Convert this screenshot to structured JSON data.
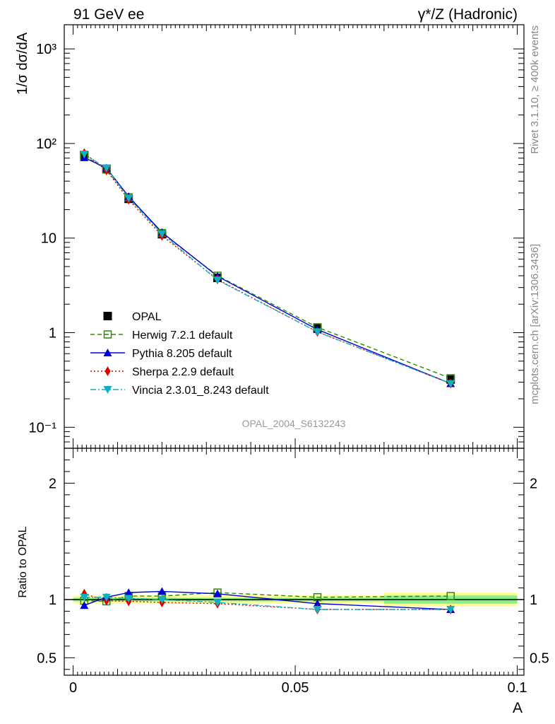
{
  "header": {
    "left_title": "91 GeV ee",
    "right_title": "γ*/Z (Hadronic)"
  },
  "side_labels": {
    "rivet": "Rivet 3.1.10, ≥ 400k events",
    "mcplots": "mcplots.cern.ch [arXiv:1306.3436]"
  },
  "analysis_id": "OPAL_2004_S6132243",
  "colors": {
    "opal": "#000000",
    "herwig": "#2e8b00",
    "pythia": "#0000d0",
    "sherpa": "#e00000",
    "vincia": "#10b0c0",
    "band_outer": "#ffff99",
    "band_inner": "#88ee88"
  },
  "chart_data": [
    {
      "type": "line",
      "panel": "main",
      "ylabel": "1/σ dσ/dA",
      "yscale": "log",
      "ylim": [
        0.06,
        1800
      ],
      "xlim": [
        -0.002,
        0.1015
      ],
      "y_tick_labels": [
        "10⁻¹",
        "1",
        "10",
        "10²",
        "10³"
      ],
      "x": [
        0.0025,
        0.0075,
        0.0125,
        0.02,
        0.0325,
        0.055,
        0.085
      ],
      "series": [
        {
          "name": "OPAL",
          "values": [
            75,
            54,
            26,
            11,
            3.8,
            1.12,
            0.32
          ]
        },
        {
          "name": "Herwig 7.2.1 default",
          "values": [
            74,
            53,
            27,
            11.3,
            4.0,
            1.14,
            0.33
          ]
        },
        {
          "name": "Pythia 8.205 default",
          "values": [
            71,
            55,
            27.5,
            11.5,
            3.95,
            1.08,
            0.29
          ]
        },
        {
          "name": "Sherpa 2.2.9 default",
          "values": [
            79,
            52,
            25.5,
            10.6,
            3.65,
            1.02,
            0.29
          ]
        },
        {
          "name": "Vincia 2.3.01_8.243 default",
          "values": [
            77,
            55,
            26.5,
            11.1,
            3.6,
            1.02,
            0.29
          ]
        }
      ]
    },
    {
      "type": "line",
      "panel": "ratio",
      "ylabel": "Ratio to OPAL",
      "xlabel": "A",
      "ylim": [
        0.35,
        2.3
      ],
      "xlim": [
        -0.002,
        0.1015
      ],
      "y_tick_labels": [
        "0.5",
        "1",
        "2"
      ],
      "x_tick_labels": [
        "0",
        "0.05",
        "0.1"
      ],
      "x": [
        0.0025,
        0.0075,
        0.0125,
        0.02,
        0.0325,
        0.055,
        0.085
      ],
      "bands": [
        {
          "x0": 0.0,
          "x1": 0.07,
          "lo": 0.965,
          "hi": 1.035,
          "inner_lo": 0.985,
          "inner_hi": 1.015
        },
        {
          "x0": 0.07,
          "x1": 0.1,
          "lo": 0.94,
          "hi": 1.06,
          "inner_lo": 0.965,
          "inner_hi": 1.035
        }
      ],
      "series": [
        {
          "name": "Herwig 7.2.1 default",
          "values": [
            0.99,
            0.985,
            1.03,
            1.03,
            1.06,
            1.02,
            1.03
          ]
        },
        {
          "name": "Pythia 8.205 default",
          "values": [
            0.95,
            1.02,
            1.06,
            1.07,
            1.05,
            0.965,
            0.915
          ]
        },
        {
          "name": "Sherpa 2.2.9 default",
          "values": [
            1.05,
            0.99,
            0.985,
            0.975,
            0.965,
            0.915,
            0.915
          ]
        },
        {
          "name": "Vincia 2.3.01_8.243 default",
          "values": [
            1.02,
            1.02,
            1.01,
            1.0,
            0.975,
            0.915,
            0.915
          ]
        }
      ]
    }
  ]
}
